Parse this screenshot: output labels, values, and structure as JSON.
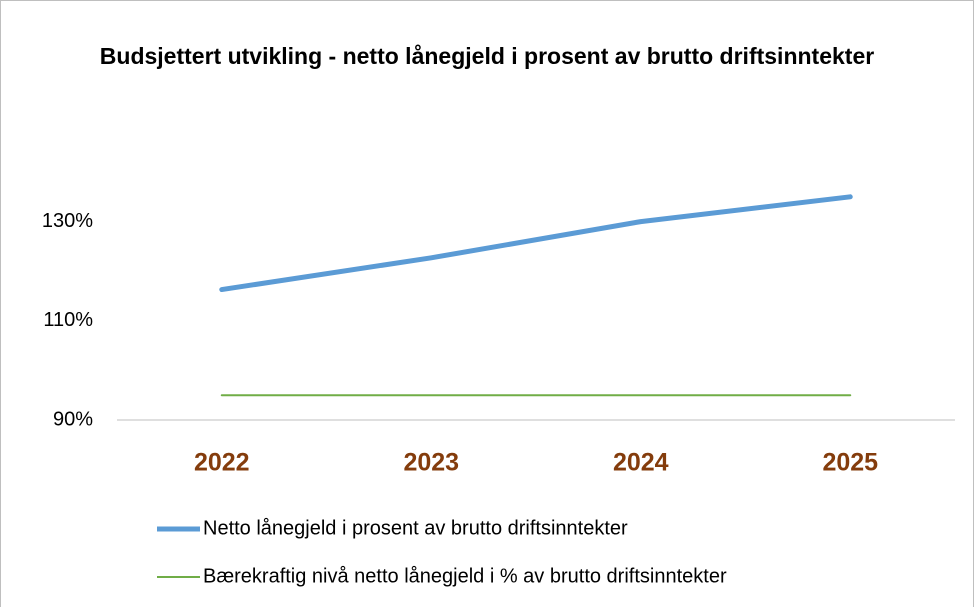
{
  "chart_data": {
    "type": "line",
    "title": "Budsjettert utvikling - netto lånegjeld i prosent av brutto driftsinntekter",
    "categories": [
      "2022",
      "2023",
      "2024",
      "2025"
    ],
    "series": [
      {
        "name": "Netto lånegjeld i prosent av brutto driftsinntekter",
        "color": "#5b9bd5",
        "values": [
          116.3,
          122.7,
          130,
          135
        ]
      },
      {
        "name": "Bærekraftig nivå netto lånegjeld i % av brutto driftsinntekter",
        "color": "#70ad47",
        "values": [
          95,
          95,
          95,
          95
        ]
      }
    ],
    "ylim": [
      90,
      140
    ],
    "yticks": [
      {
        "value": 90,
        "label": "90%"
      },
      {
        "value": 110,
        "label": "110%"
      },
      {
        "value": 130,
        "label": "130%"
      }
    ],
    "grid": false,
    "legend": "bottom"
  }
}
